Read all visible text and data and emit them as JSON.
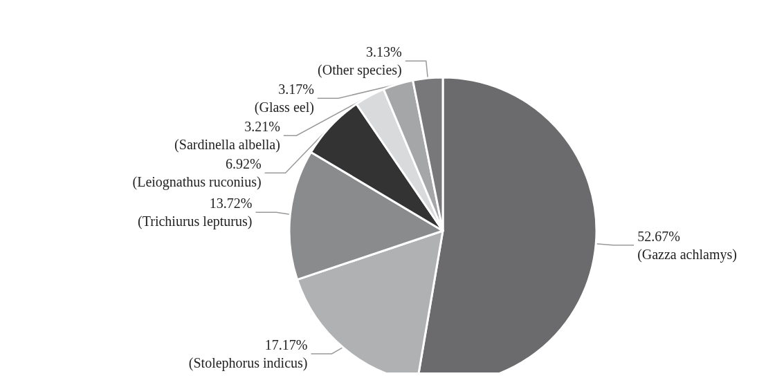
{
  "chart_data": {
    "type": "pie",
    "categories": [
      "(Gazza achlamys)",
      "(Stolephorus indicus)",
      "(Trichiurus lepturus)",
      "(Leiognathus ruconius)",
      "(Sardinella albella)",
      "(Glass eel)",
      "(Other species)"
    ],
    "values": [
      52.67,
      17.17,
      13.72,
      6.92,
      3.21,
      3.17,
      3.13
    ],
    "value_labels": [
      "52.67%",
      "17.17%",
      "13.72%",
      "6.92%",
      "3.21%",
      "3.17%",
      "3.13%"
    ],
    "colors": [
      "#6b6b6d",
      "#b0b1b3",
      "#8a8b8d",
      "#333333",
      "#d9dadb",
      "#a5a6a8",
      "#78787a"
    ],
    "legend": false
  }
}
